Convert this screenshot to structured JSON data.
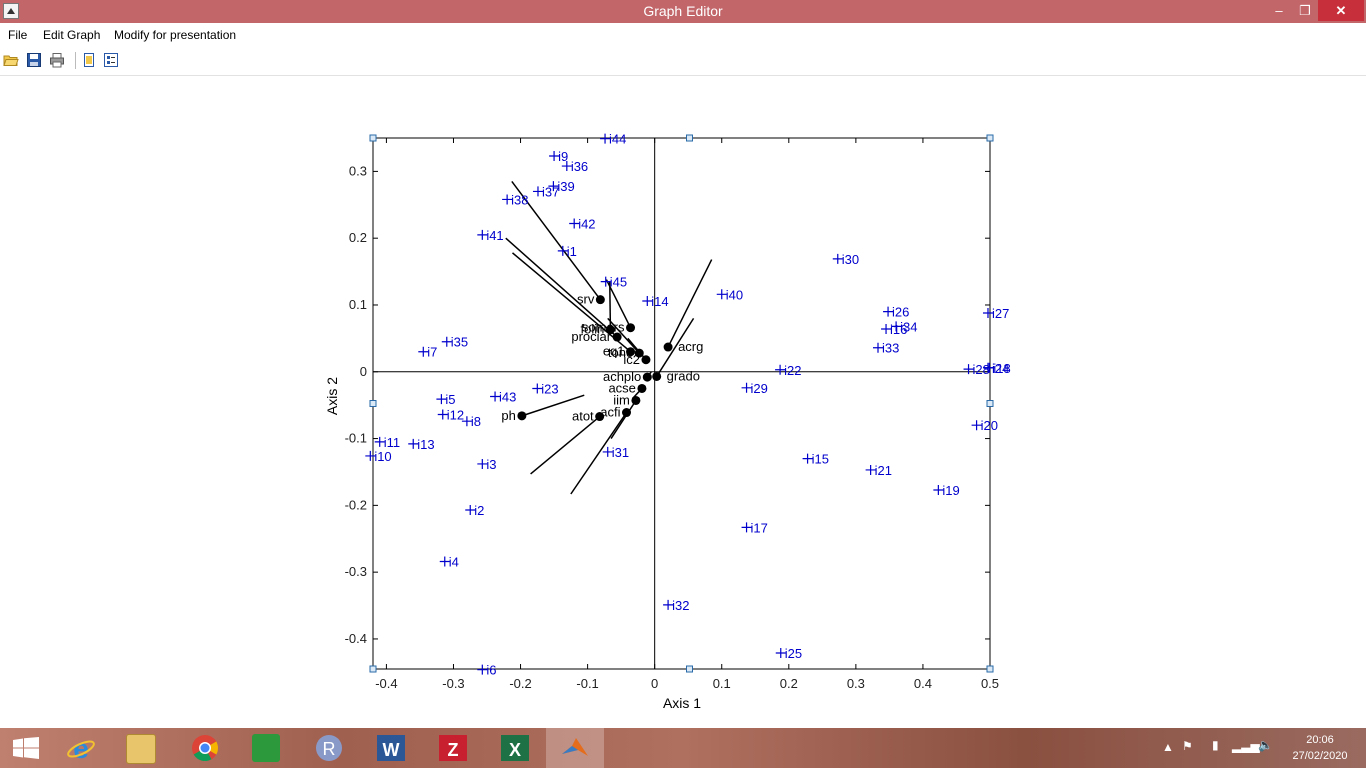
{
  "window": {
    "title": "Graph Editor",
    "min_glyph": "–",
    "max_glyph": "❐",
    "close_glyph": "✕"
  },
  "menu": {
    "file": "File",
    "edit": "Edit Graph",
    "modify": "Modify for presentation"
  },
  "toolbar": {
    "icons": [
      "open-folder-icon",
      "save-icon",
      "print-icon",
      "figure-icon",
      "properties-icon"
    ]
  },
  "chart_data": {
    "type": "scatter",
    "xlabel": "Axis 1",
    "ylabel": "Axis 2",
    "xlim": [
      -0.42,
      0.5
    ],
    "ylim": [
      -0.445,
      0.35
    ],
    "xticks": [
      -0.4,
      -0.3,
      -0.2,
      -0.1,
      0,
      0.1,
      0.2,
      0.3,
      0.4,
      0.5
    ],
    "yticks": [
      -0.4,
      -0.3,
      -0.2,
      -0.1,
      0,
      0.1,
      0.2,
      0.3
    ],
    "xtick_labels": [
      "-0.4",
      "-0.3",
      "-0.2",
      "-0.1",
      "0",
      "0.1",
      "0.2",
      "0.3",
      "0.4",
      "0.5"
    ],
    "ytick_labels": [
      "-0.4",
      "-0.3",
      "-0.2",
      "-0.1",
      "0",
      "0.1",
      "0.2",
      "0.3"
    ],
    "colors": {
      "individuals": "#0000cc",
      "variables": "#000000"
    },
    "individuals": [
      {
        "label": "i44",
        "x": -0.074,
        "y": 0.349
      },
      {
        "label": "i9",
        "x": -0.15,
        "y": 0.323
      },
      {
        "label": "i36",
        "x": -0.131,
        "y": 0.308
      },
      {
        "label": "i39",
        "x": -0.151,
        "y": 0.278
      },
      {
        "label": "i37",
        "x": -0.174,
        "y": 0.27
      },
      {
        "label": "i38",
        "x": -0.22,
        "y": 0.258
      },
      {
        "label": "i42",
        "x": -0.12,
        "y": 0.222
      },
      {
        "label": "i41",
        "x": -0.257,
        "y": 0.205
      },
      {
        "label": "i1",
        "x": -0.137,
        "y": 0.181
      },
      {
        "label": "i45",
        "x": -0.073,
        "y": 0.135
      },
      {
        "label": "i14",
        "x": -0.011,
        "y": 0.106
      },
      {
        "label": "i35",
        "x": -0.31,
        "y": 0.045
      },
      {
        "label": "i7",
        "x": -0.345,
        "y": 0.03
      },
      {
        "label": "i23",
        "x": -0.175,
        "y": -0.025
      },
      {
        "label": "i43",
        "x": -0.238,
        "y": -0.037
      },
      {
        "label": "i5",
        "x": -0.318,
        "y": -0.041
      },
      {
        "label": "i12",
        "x": -0.316,
        "y": -0.064
      },
      {
        "label": "i8",
        "x": -0.28,
        "y": -0.074
      },
      {
        "label": "i11",
        "x": -0.41,
        "y": -0.105
      },
      {
        "label": "i10",
        "x": -0.424,
        "y": -0.126
      },
      {
        "label": "i13",
        "x": -0.36,
        "y": -0.108
      },
      {
        "label": "i31",
        "x": -0.07,
        "y": -0.12
      },
      {
        "label": "i3",
        "x": -0.257,
        "y": -0.138
      },
      {
        "label": "i2",
        "x": -0.275,
        "y": -0.207
      },
      {
        "label": "i4",
        "x": -0.313,
        "y": -0.284
      },
      {
        "label": "i6",
        "x": -0.257,
        "y": -0.446
      },
      {
        "label": "i30",
        "x": 0.273,
        "y": 0.169
      },
      {
        "label": "i40",
        "x": 0.1,
        "y": 0.116
      },
      {
        "label": "i26",
        "x": 0.348,
        "y": 0.09
      },
      {
        "label": "i34",
        "x": 0.36,
        "y": 0.068
      },
      {
        "label": "i16",
        "x": 0.345,
        "y": 0.064
      },
      {
        "label": "i27",
        "x": 0.497,
        "y": 0.088
      },
      {
        "label": "i33",
        "x": 0.333,
        "y": 0.036
      },
      {
        "label": "i28",
        "x": 0.468,
        "y": 0.004
      },
      {
        "label": "i24",
        "x": 0.497,
        "y": 0.006
      },
      {
        "label": "i18",
        "x": 0.499,
        "y": 0.006
      },
      {
        "label": "i22",
        "x": 0.187,
        "y": 0.003
      },
      {
        "label": "i29",
        "x": 0.137,
        "y": -0.024
      },
      {
        "label": "i20",
        "x": 0.48,
        "y": -0.08
      },
      {
        "label": "i15",
        "x": 0.228,
        "y": -0.13
      },
      {
        "label": "i21",
        "x": 0.322,
        "y": -0.147
      },
      {
        "label": "i19",
        "x": 0.423,
        "y": -0.177
      },
      {
        "label": "i17",
        "x": 0.137,
        "y": -0.233
      },
      {
        "label": "i32",
        "x": 0.02,
        "y": -0.349
      },
      {
        "label": "i25",
        "x": 0.188,
        "y": -0.421
      }
    ],
    "variables": [
      {
        "label": "srv",
        "x": -0.081,
        "y": 0.108,
        "end": [
          -0.213,
          0.285
        ]
      },
      {
        "label": "somers",
        "x": -0.036,
        "y": 0.066,
        "end": [
          -0.072,
          0.138
        ]
      },
      {
        "label": "folin",
        "x": -0.066,
        "y": 0.063,
        "end": [
          -0.067,
          0.135
        ]
      },
      {
        "label": "prociar",
        "x": -0.056,
        "y": 0.052,
        "end": [
          -0.222,
          0.2
        ]
      },
      {
        "label": "eq1",
        "x": -0.036,
        "y": 0.03,
        "end": [
          -0.212,
          0.178
        ]
      },
      {
        "label": "tono",
        "x": -0.023,
        "y": 0.028,
        "end": [
          -0.07,
          0.08
        ]
      },
      {
        "label": "ic2",
        "x": -0.013,
        "y": 0.018,
        "end": [
          -0.04,
          0.05
        ]
      },
      {
        "label": "acrg",
        "x": 0.02,
        "y": 0.037,
        "end": [
          0.085,
          0.168
        ]
      },
      {
        "label": "grado",
        "x": 0.003,
        "y": -0.007,
        "end": [
          0.058,
          0.08
        ]
      },
      {
        "label": "achplo",
        "x": -0.011,
        "y": -0.008,
        "end": [
          -0.005,
          0.0
        ]
      },
      {
        "label": "acse",
        "x": -0.019,
        "y": -0.025,
        "end": [
          -0.033,
          -0.04
        ]
      },
      {
        "label": "iim",
        "x": -0.028,
        "y": -0.043,
        "end": [
          -0.065,
          -0.1
        ]
      },
      {
        "label": "atot",
        "x": -0.082,
        "y": -0.067,
        "end": [
          -0.185,
          -0.153
        ]
      },
      {
        "label": "acfi",
        "x": -0.042,
        "y": -0.061,
        "end": [
          -0.125,
          -0.183
        ]
      },
      {
        "label": "ph",
        "x": -0.198,
        "y": -0.066,
        "end": [
          -0.105,
          -0.035
        ]
      }
    ]
  },
  "taskbar": {
    "apps": [
      "windows-start-icon",
      "internet-explorer-icon",
      "file-explorer-icon",
      "chrome-icon",
      "store-icon",
      "r-icon",
      "word-icon",
      "zotero-icon",
      "excel-icon",
      "matlab-icon"
    ],
    "clock_time": "20:06",
    "clock_date": "27/02/2020"
  }
}
